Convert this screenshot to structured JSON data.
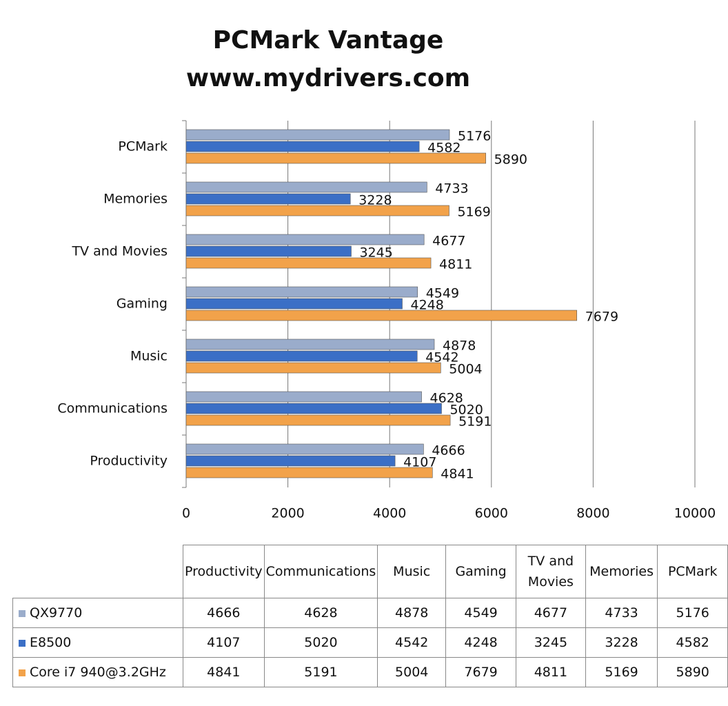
{
  "chart_data": {
    "type": "bar",
    "orientation": "horizontal",
    "title": "PCMark Vantage",
    "subtitle": "www.mydrivers.com",
    "categories": [
      "Productivity",
      "Communications",
      "Music",
      "Gaming",
      "TV and Movies",
      "Memories",
      "PCMark"
    ],
    "series": [
      {
        "name": "QX9770",
        "color": "#9aaccb",
        "values": [
          4666,
          4628,
          4878,
          4549,
          4677,
          4733,
          5176
        ]
      },
      {
        "name": "E8500",
        "color": "#3b6fc6",
        "values": [
          4107,
          5020,
          4542,
          4248,
          3245,
          3228,
          4582
        ]
      },
      {
        "name": "Core i7 940@3.2GHz",
        "color": "#f2a24a",
        "values": [
          4841,
          5191,
          5004,
          7679,
          4811,
          5169,
          5890
        ]
      }
    ],
    "xlim": [
      0,
      10000
    ],
    "xticks": [
      0,
      2000,
      4000,
      6000,
      8000,
      10000
    ],
    "grid": true
  }
}
